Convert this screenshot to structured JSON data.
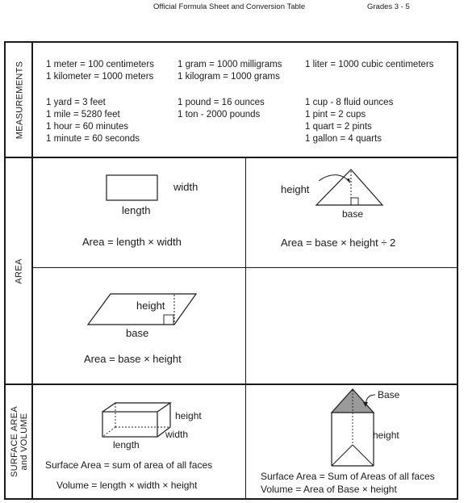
{
  "header": {
    "title": "Official Formula Sheet and Conversion Table",
    "grades": "Grades 3 - 5"
  },
  "sections": {
    "measurements_label": "MEASUREMENTS",
    "area_label": "AREA",
    "surface_label_line1": "SURFACE AREA",
    "surface_label_line2": "and VOLUME"
  },
  "measurements": {
    "col1_top": [
      "1 meter = 100 centimeters",
      "1 kilometer = 1000 meters"
    ],
    "col2_top": [
      "1 gram = 1000 milligrams",
      "1 kilogram = 1000 grams"
    ],
    "col3_top": [
      "1 liter = 1000 cubic centimeters"
    ],
    "col1_bottom": [
      "1 yard = 3 feet",
      "1 mile = 5280 feet",
      "1 hour = 60 minutes",
      "1 minute = 60 seconds"
    ],
    "col2_bottom": [
      "1 pound = 16 ounces",
      "1 ton - 2000 pounds"
    ],
    "col3_bottom": [
      "1 cup - 8 fluid ounces",
      "1 pint = 2 cups",
      "1 quart = 2 pints",
      "1 gallon = 4 quarts"
    ]
  },
  "area": {
    "rectangle": {
      "width_label": "width",
      "length_label": "length",
      "formula": "Area = length × width"
    },
    "triangle": {
      "height_label": "height",
      "base_label": "base",
      "formula": "Area = base × height ÷ 2"
    },
    "parallelogram": {
      "height_label": "height",
      "base_label": "base",
      "formula": "Area = base × height"
    }
  },
  "surface_volume": {
    "prism": {
      "height_label": "height",
      "width_label": "width",
      "length_label": "length",
      "surface_formula": "Surface Area = sum of area of all faces",
      "volume_formula": "Volume = length × width × height"
    },
    "triangular_prism": {
      "base_label": "Base",
      "height_label": "height",
      "surface_formula": "Surface Area = Sum of Areas of all faces",
      "volume_formula": "Volume = Area of Base × height"
    }
  },
  "colors": {
    "ink": "#1a1a1a",
    "shaded_base": "#9a9a9a"
  }
}
